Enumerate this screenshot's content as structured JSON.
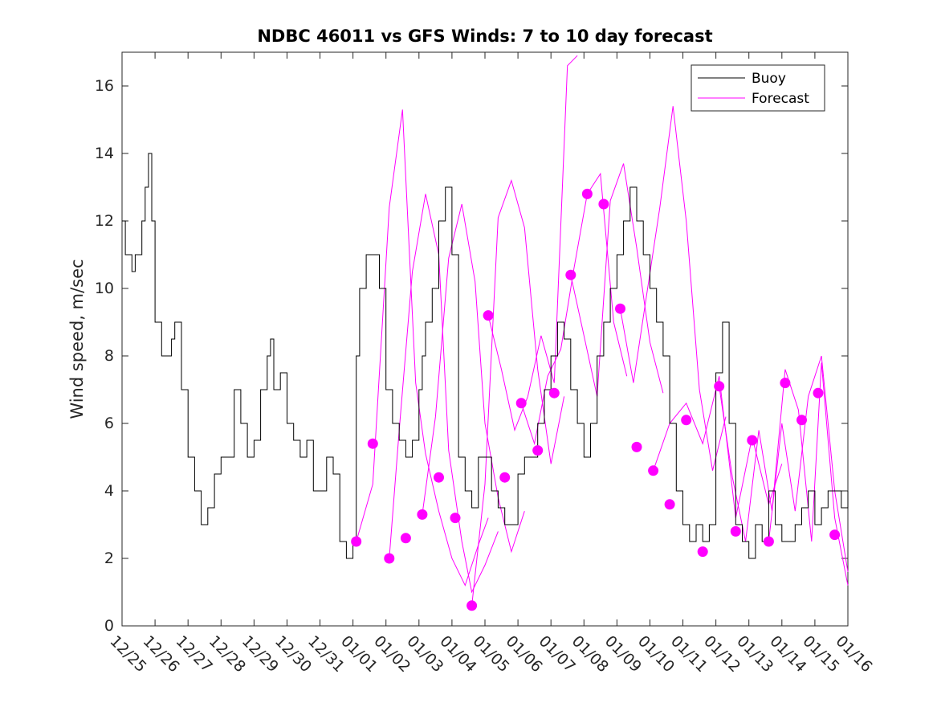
{
  "chart_data": {
    "type": "line",
    "title": "NDBC 46011 vs GFS Winds: 7 to 10 day forecast",
    "xlabel": "",
    "ylabel": "Wind speed, m/sec",
    "x_axis": {
      "unit": "days since 12/25",
      "range": [
        0,
        22
      ],
      "tick_labels": [
        "12/25",
        "12/26",
        "12/27",
        "12/28",
        "12/29",
        "12/30",
        "12/31",
        "01/01",
        "01/02",
        "01/03",
        "01/04",
        "01/05",
        "01/06",
        "01/07",
        "01/08",
        "01/09",
        "01/10",
        "01/11",
        "01/12",
        "01/13",
        "01/14",
        "01/15",
        "01/16"
      ]
    },
    "ylim": [
      0,
      17
    ],
    "y_ticks": [
      0,
      2,
      4,
      6,
      8,
      10,
      12,
      14,
      16
    ],
    "grid": false,
    "legend": {
      "placement": "top-right",
      "entries": [
        "Buoy",
        "Forecast"
      ]
    },
    "colors": {
      "buoy": "#000000",
      "forecast": "#ff00ff"
    },
    "series": [
      {
        "name": "Buoy",
        "x": [
          0.0,
          0.1,
          0.2,
          0.3,
          0.4,
          0.5,
          0.6,
          0.7,
          0.8,
          0.9,
          1.0,
          1.2,
          1.4,
          1.5,
          1.6,
          1.8,
          2.0,
          2.2,
          2.4,
          2.6,
          2.8,
          3.0,
          3.2,
          3.4,
          3.6,
          3.8,
          4.0,
          4.2,
          4.4,
          4.5,
          4.6,
          4.8,
          5.0,
          5.2,
          5.4,
          5.5,
          5.6,
          5.8,
          6.0,
          6.2,
          6.4,
          6.6,
          6.8,
          7.0,
          7.1,
          7.2,
          7.4,
          7.6,
          7.8,
          8.0,
          8.2,
          8.4,
          8.6,
          8.8,
          9.0,
          9.1,
          9.2,
          9.4,
          9.6,
          9.8,
          10.0,
          10.2,
          10.4,
          10.6,
          10.8,
          11.0,
          11.2,
          11.4,
          11.6,
          11.8,
          12.0,
          12.2,
          12.4,
          12.6,
          12.8,
          13.0,
          13.2,
          13.4,
          13.6,
          13.8,
          14.0,
          14.2,
          14.4,
          14.6,
          14.8,
          15.0,
          15.2,
          15.4,
          15.6,
          15.8,
          16.0,
          16.2,
          16.4,
          16.6,
          16.8,
          17.0,
          17.2,
          17.4,
          17.6,
          17.8,
          18.0,
          18.2,
          18.4,
          18.6,
          18.8,
          19.0,
          19.2,
          19.4,
          19.6,
          19.8,
          20.0,
          20.2,
          20.4,
          20.6,
          20.8,
          21.0,
          21.2,
          21.4,
          21.6,
          21.8,
          22.0
        ],
        "y": [
          12,
          11,
          11,
          10.5,
          11,
          11,
          12,
          13,
          14,
          12,
          9,
          8,
          8,
          8.5,
          9,
          7,
          5,
          4,
          3,
          3.5,
          4.5,
          5,
          5,
          7,
          6,
          5,
          5.5,
          7,
          8,
          8.5,
          7,
          7.5,
          6,
          5.5,
          5,
          5,
          5.5,
          4,
          4,
          5,
          4.5,
          2.5,
          2,
          2.5,
          8,
          10,
          11,
          11,
          10,
          7,
          6,
          5.5,
          5,
          5.5,
          7,
          8,
          9,
          10,
          12,
          13,
          11,
          5,
          4,
          3.5,
          5,
          5,
          4,
          3.5,
          3,
          3,
          4.5,
          5,
          5,
          6,
          7,
          8,
          9,
          8.5,
          7,
          6,
          5,
          6,
          8,
          9,
          10,
          11,
          12,
          13,
          12,
          11,
          10,
          9,
          8,
          6,
          4,
          3,
          2.5,
          3,
          2.5,
          3,
          7.5,
          9,
          6,
          3,
          2.5,
          2,
          3,
          2.5,
          4,
          3,
          2.5,
          2.5,
          3,
          3.5,
          4,
          3,
          3.5,
          4,
          4,
          3.5,
          4
        ]
      },
      {
        "name": "Forecast",
        "markers": {
          "x": [
            7.1,
            7.6,
            8.1,
            8.6,
            9.1,
            9.6,
            10.1,
            10.6,
            11.1,
            11.6,
            12.1,
            12.6,
            13.1,
            13.6,
            14.1,
            14.6,
            15.1,
            15.6,
            16.1,
            16.6,
            17.1,
            17.6,
            18.1,
            18.6,
            19.1,
            19.6,
            20.1,
            20.6,
            21.1,
            21.6
          ],
          "y": [
            2.5,
            5.4,
            2.0,
            2.6,
            3.3,
            4.4,
            3.2,
            0.6,
            9.2,
            4.4,
            6.6,
            5.2,
            6.9,
            10.4,
            12.8,
            12.5,
            9.4,
            5.3,
            4.6,
            3.6,
            6.1,
            2.2,
            7.1,
            2.8,
            5.5,
            2.5,
            7.2,
            6.1,
            6.9,
            2.7
          ]
        },
        "runs": [
          {
            "x": [
              7.1,
              7.6,
              8.1,
              8.5,
              8.9,
              9.2,
              9.6,
              10.0,
              10.4,
              10.8,
              11.1
            ],
            "y": [
              2.5,
              4.2,
              12.4,
              15.3,
              7.2,
              5.1,
              3.4,
              2.0,
              1.2,
              2.4,
              3.2
            ]
          },
          {
            "x": [
              8.1,
              8.4,
              8.8,
              9.2,
              9.6,
              9.9,
              10.3,
              10.6,
              11.0,
              11.4
            ],
            "y": [
              2.0,
              5.8,
              10.5,
              12.8,
              11.0,
              5.2,
              2.5,
              1.0,
              1.8,
              2.8
            ]
          },
          {
            "x": [
              9.1,
              9.5,
              9.9,
              10.3,
              10.7,
              11.0,
              11.4,
              11.8,
              12.2
            ],
            "y": [
              3.3,
              6.2,
              10.9,
              12.5,
              10.2,
              6.0,
              3.8,
              2.2,
              3.4
            ]
          },
          {
            "x": [
              10.6,
              11.0,
              11.4,
              11.8,
              12.2,
              12.6,
              13.0,
              13.4
            ],
            "y": [
              0.6,
              4.2,
              12.1,
              13.2,
              11.8,
              7.6,
              4.8,
              6.8
            ]
          },
          {
            "x": [
              11.1,
              11.5,
              11.9,
              12.3,
              12.7,
              13.1,
              13.5,
              13.8
            ],
            "y": [
              9.2,
              7.6,
              5.8,
              6.8,
              8.6,
              7.2,
              16.6,
              16.9
            ]
          },
          {
            "x": [
              12.1,
              12.5,
              12.9,
              13.3,
              13.7,
              14.1,
              14.5,
              14.9,
              15.3
            ],
            "y": [
              6.6,
              5.4,
              7.4,
              8.2,
              10.6,
              12.8,
              13.4,
              9.0,
              7.4
            ]
          },
          {
            "x": [
              13.6,
              14.0,
              14.4,
              14.8,
              15.2,
              15.6,
              16.0,
              16.4
            ],
            "y": [
              10.4,
              8.6,
              6.8,
              12.6,
              13.7,
              11.2,
              8.4,
              6.9
            ]
          },
          {
            "x": [
              15.1,
              15.5,
              15.9,
              16.3,
              16.7,
              17.1,
              17.5,
              17.9,
              18.3
            ],
            "y": [
              9.4,
              7.2,
              9.8,
              12.4,
              15.4,
              12.0,
              7.0,
              4.6,
              6.2
            ]
          },
          {
            "x": [
              16.1,
              16.6,
              17.1,
              17.6,
              18.1,
              18.6,
              19.1,
              19.6,
              20.0
            ],
            "y": [
              4.6,
              6.0,
              6.6,
              5.4,
              7.4,
              3.2,
              5.6,
              3.6,
              4.8
            ]
          },
          {
            "x": [
              18.1,
              18.5,
              18.9,
              19.3,
              19.7,
              20.1,
              20.5,
              20.9,
              21.2,
              21.6,
              22.0
            ],
            "y": [
              7.1,
              4.4,
              2.5,
              5.8,
              3.4,
              7.6,
              6.4,
              2.5,
              7.8,
              3.2,
              1.2
            ]
          },
          {
            "x": [
              19.6,
              20.0,
              20.4,
              20.8,
              21.2,
              21.6,
              22.0
            ],
            "y": [
              2.5,
              6.0,
              3.4,
              6.8,
              8.0,
              4.0,
              1.6
            ]
          }
        ]
      }
    ]
  }
}
